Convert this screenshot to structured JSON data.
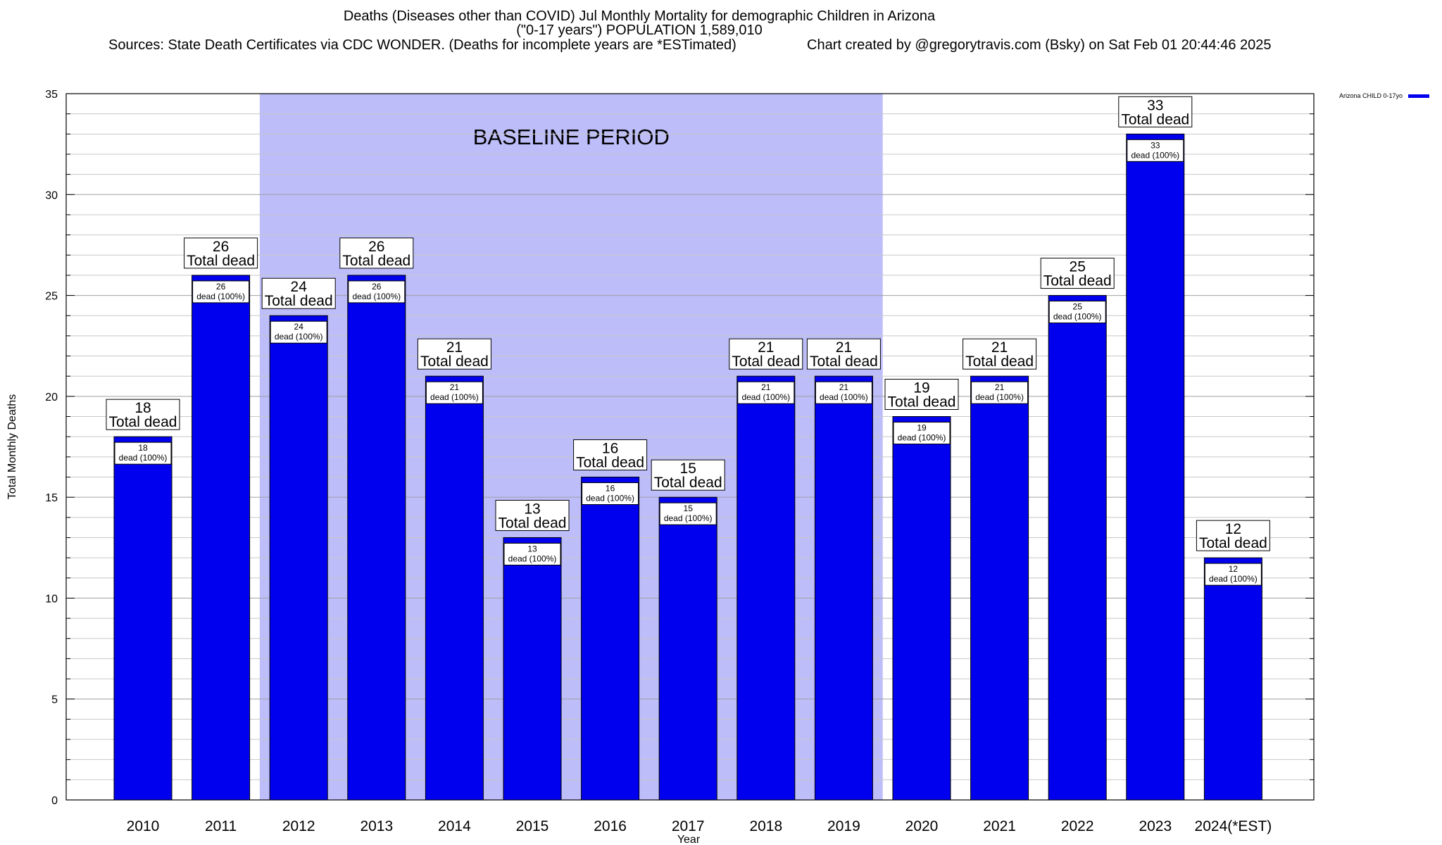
{
  "header": {
    "title": "Deaths (Diseases other than COVID) Jul Monthly Mortality for demographic Children in Arizona",
    "subtitle": "(\"0-17 years\") POPULATION 1,589,010",
    "sources": "Sources: State Death Certificates via CDC WONDER. (Deaths for incomplete years are *ESTimated)",
    "credit": "Chart created by @gregorytravis.com (Bsky) on Sat Feb 01 20:44:46 2025"
  },
  "chart_data": {
    "type": "bar",
    "title": "Deaths (Diseases other than COVID) Jul Monthly Mortality for demographic Children in Arizona",
    "xlabel": "Year",
    "ylabel": "Total Monthly Deaths",
    "ylim": [
      0,
      35
    ],
    "yticks": [
      0,
      5,
      10,
      15,
      20,
      25,
      30,
      35
    ],
    "grid": true,
    "legend_position": "top-right",
    "categories": [
      "2010",
      "2011",
      "2012",
      "2013",
      "2014",
      "2015",
      "2016",
      "2017",
      "2018",
      "2019",
      "2020",
      "2021",
      "2022",
      "2023",
      "2024(*EST)"
    ],
    "series": [
      {
        "name": "Arizona CHILD 0-17yo",
        "color": "#0000ee",
        "values": [
          18,
          26,
          24,
          26,
          21,
          13,
          16,
          15,
          21,
          21,
          19,
          21,
          25,
          33,
          12
        ]
      }
    ],
    "total_label": "Total dead",
    "inner_label": "dead (100%)",
    "baseline": {
      "label": "BASELINE PERIOD",
      "start": "2012",
      "end": "2019",
      "color": "#bdbdfa"
    }
  }
}
